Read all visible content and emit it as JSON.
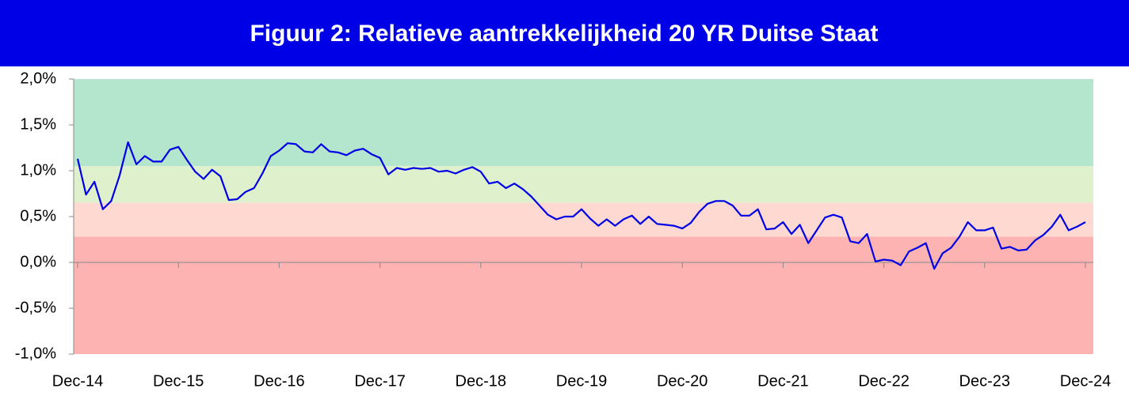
{
  "chart_data": {
    "type": "line",
    "title": "Figuur 2: Relatieve aantrekkelijkheid 20 YR Duitse Staat",
    "categories": [
      "Dec-14",
      null,
      null,
      null,
      null,
      null,
      null,
      null,
      null,
      null,
      null,
      null,
      "Dec-15",
      null,
      null,
      null,
      null,
      null,
      null,
      null,
      null,
      null,
      null,
      null,
      "Dec-16",
      null,
      null,
      null,
      null,
      null,
      null,
      null,
      null,
      null,
      null,
      null,
      "Dec-17",
      null,
      null,
      null,
      null,
      null,
      null,
      null,
      null,
      null,
      null,
      null,
      "Dec-18",
      null,
      null,
      null,
      null,
      null,
      null,
      null,
      null,
      null,
      null,
      null,
      "Dec-19",
      null,
      null,
      null,
      null,
      null,
      null,
      null,
      null,
      null,
      null,
      null,
      "Dec-20",
      null,
      null,
      null,
      null,
      null,
      null,
      null,
      null,
      null,
      null,
      null,
      "Dec-21",
      null,
      null,
      null,
      null,
      null,
      null,
      null,
      null,
      null,
      null,
      null,
      "Dec-22",
      null,
      null,
      null,
      null,
      null,
      null,
      null,
      null,
      null,
      null,
      null,
      "Dec-23",
      null,
      null,
      null,
      null,
      null,
      null,
      null,
      null,
      null,
      null,
      null,
      "Dec-24"
    ],
    "series": [
      {
        "color": "#0000e6",
        "values": [
          1.13,
          0.74,
          0.88,
          0.58,
          0.67,
          0.95,
          1.31,
          1.07,
          1.16,
          1.1,
          1.1,
          1.23,
          1.26,
          1.12,
          0.99,
          0.91,
          1.01,
          0.94,
          0.68,
          0.69,
          0.77,
          0.81,
          0.97,
          1.16,
          1.22,
          1.3,
          1.29,
          1.21,
          1.2,
          1.29,
          1.21,
          1.2,
          1.17,
          1.22,
          1.24,
          1.18,
          1.14,
          0.96,
          1.03,
          1.01,
          1.03,
          1.02,
          1.03,
          0.99,
          1.0,
          0.97,
          1.01,
          1.04,
          0.99,
          0.86,
          0.88,
          0.81,
          0.86,
          0.8,
          0.72,
          0.62,
          0.52,
          0.47,
          0.5,
          0.5,
          0.58,
          0.48,
          0.4,
          0.47,
          0.4,
          0.47,
          0.51,
          0.42,
          0.5,
          0.42,
          0.41,
          0.4,
          0.37,
          0.43,
          0.55,
          0.64,
          0.67,
          0.67,
          0.62,
          0.51,
          0.51,
          0.58,
          0.36,
          0.37,
          0.44,
          0.31,
          0.41,
          0.21,
          0.35,
          0.49,
          0.52,
          0.49,
          0.23,
          0.21,
          0.31,
          0.01,
          0.03,
          0.02,
          -0.03,
          0.12,
          0.16,
          0.21,
          -0.07,
          0.1,
          0.16,
          0.28,
          0.44,
          0.35,
          0.35,
          0.38,
          0.15,
          0.17,
          0.13,
          0.14,
          0.24,
          0.3,
          0.39,
          0.52,
          0.35,
          0.39,
          0.44
        ]
      }
    ],
    "ylim": [
      -1.0,
      2.0
    ],
    "yticks": [
      {
        "value": 2.0,
        "label": "2,0%"
      },
      {
        "value": 1.5,
        "label": "1,5%"
      },
      {
        "value": 1.0,
        "label": "1,0%"
      },
      {
        "value": 0.5,
        "label": "0,5%"
      },
      {
        "value": 0.0,
        "label": "0,0%"
      },
      {
        "value": -0.5,
        "label": "-0,5%"
      },
      {
        "value": -1.0,
        "label": "-1,0%"
      }
    ],
    "bands": [
      {
        "from": 1.05,
        "to": 2.0,
        "color": "#b3e6cc"
      },
      {
        "from": 0.65,
        "to": 1.05,
        "color": "#dff0cc"
      },
      {
        "from": 0.28,
        "to": 0.65,
        "color": "#fdd9d2"
      },
      {
        "from": -1.0,
        "to": 0.28,
        "color": "#feb3b3"
      }
    ]
  }
}
